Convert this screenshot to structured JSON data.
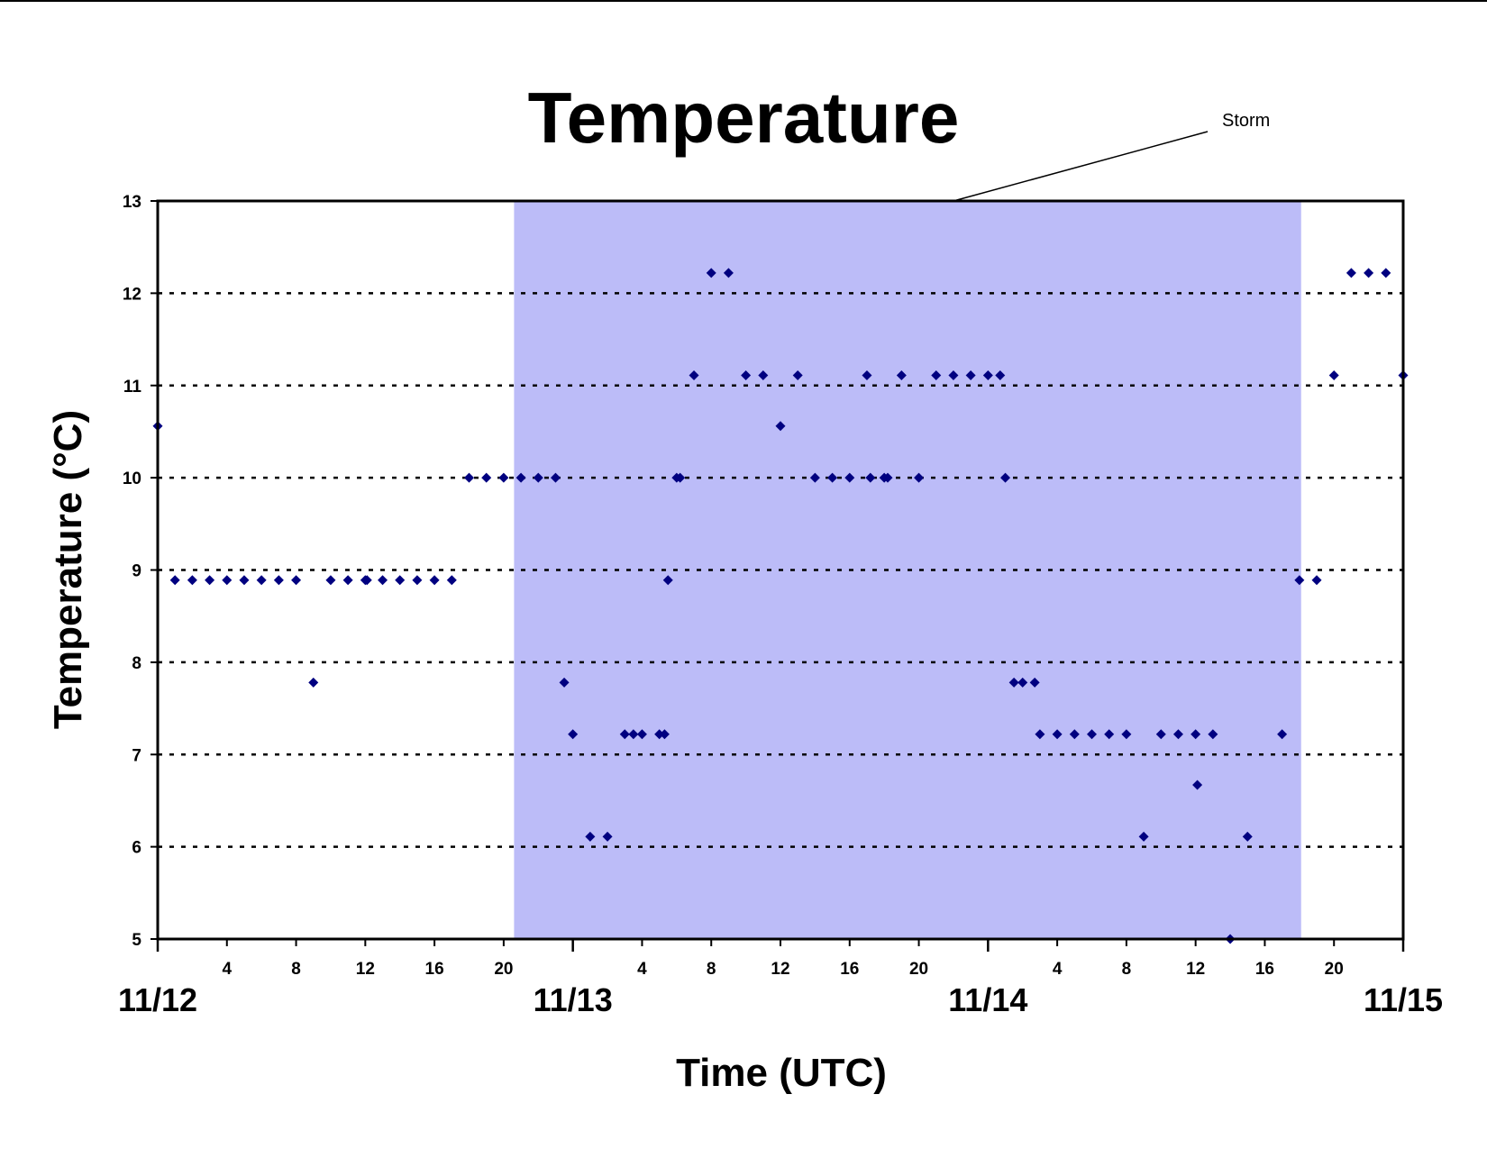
{
  "chart_data": {
    "type": "scatter",
    "title": "Temperature",
    "xlabel": "Time (UTC)",
    "ylabel": "Temperature (°C)",
    "ylim": [
      5,
      13
    ],
    "yticks": [
      5,
      6,
      7,
      8,
      9,
      10,
      11,
      12,
      13
    ],
    "xlim": [
      "11/12 00:00",
      "11/15 00:00"
    ],
    "day_labels": [
      "11/12",
      "11/13",
      "11/14",
      "11/15"
    ],
    "hour_tick_labels": [
      "4",
      "8",
      "12",
      "16",
      "20"
    ],
    "grid": "horizontal dotted",
    "legend": "none",
    "marker": "diamond",
    "marker_color": "#000080",
    "shaded_region": {
      "label": "Storm",
      "start": "11/12 20:36",
      "end": "11/14 18:06",
      "color": "#bcbcf8"
    },
    "series": [
      {
        "points": [
          [
            "11/12 00:00",
            10.56
          ],
          [
            "11/12 01:00",
            8.89
          ],
          [
            "11/12 02:00",
            8.89
          ],
          [
            "11/12 03:00",
            8.89
          ],
          [
            "11/12 04:00",
            8.89
          ],
          [
            "11/12 05:00",
            8.89
          ],
          [
            "11/12 06:00",
            8.89
          ],
          [
            "11/12 07:00",
            8.89
          ],
          [
            "11/12 08:00",
            8.89
          ],
          [
            "11/12 09:00",
            7.78
          ],
          [
            "11/12 10:00",
            8.89
          ],
          [
            "11/12 11:00",
            8.89
          ],
          [
            "11/12 12:00",
            8.89
          ],
          [
            "11/12 12:06",
            8.89
          ],
          [
            "11/12 13:00",
            8.89
          ],
          [
            "11/12 14:00",
            8.89
          ],
          [
            "11/12 15:00",
            8.89
          ],
          [
            "11/12 16:00",
            8.89
          ],
          [
            "11/12 17:00",
            8.89
          ],
          [
            "11/12 18:00",
            10.0
          ],
          [
            "11/12 19:00",
            10.0
          ],
          [
            "11/12 20:00",
            10.0
          ],
          [
            "11/12 21:00",
            10.0
          ],
          [
            "11/12 22:00",
            10.0
          ],
          [
            "11/12 23:00",
            10.0
          ],
          [
            "11/12 23:30",
            7.78
          ],
          [
            "11/13 00:00",
            7.22
          ],
          [
            "11/13 01:00",
            6.11
          ],
          [
            "11/13 02:00",
            6.11
          ],
          [
            "11/13 03:00",
            7.22
          ],
          [
            "11/13 03:30",
            7.22
          ],
          [
            "11/13 04:00",
            7.22
          ],
          [
            "11/13 05:00",
            7.22
          ],
          [
            "11/13 05:18",
            7.22
          ],
          [
            "11/13 05:30",
            8.89
          ],
          [
            "11/13 06:00",
            10.0
          ],
          [
            "11/13 06:12",
            10.0
          ],
          [
            "11/13 07:00",
            11.11
          ],
          [
            "11/13 08:00",
            12.22
          ],
          [
            "11/13 09:00",
            12.22
          ],
          [
            "11/13 10:00",
            11.11
          ],
          [
            "11/13 11:00",
            11.11
          ],
          [
            "11/13 12:00",
            10.56
          ],
          [
            "11/13 13:00",
            11.11
          ],
          [
            "11/13 14:00",
            10.0
          ],
          [
            "11/13 15:00",
            10.0
          ],
          [
            "11/13 16:00",
            10.0
          ],
          [
            "11/13 17:00",
            11.11
          ],
          [
            "11/13 17:12",
            10.0
          ],
          [
            "11/13 18:00",
            10.0
          ],
          [
            "11/13 18:12",
            10.0
          ],
          [
            "11/13 19:00",
            11.11
          ],
          [
            "11/13 20:00",
            10.0
          ],
          [
            "11/13 21:00",
            11.11
          ],
          [
            "11/13 22:00",
            11.11
          ],
          [
            "11/13 23:00",
            11.11
          ],
          [
            "11/14 00:00",
            11.11
          ],
          [
            "11/14 00:42",
            11.11
          ],
          [
            "11/14 01:00",
            10.0
          ],
          [
            "11/14 01:30",
            7.78
          ],
          [
            "11/14 02:00",
            7.78
          ],
          [
            "11/14 02:42",
            7.78
          ],
          [
            "11/14 03:00",
            7.22
          ],
          [
            "11/14 04:00",
            7.22
          ],
          [
            "11/14 05:00",
            7.22
          ],
          [
            "11/14 06:00",
            7.22
          ],
          [
            "11/14 07:00",
            7.22
          ],
          [
            "11/14 08:00",
            7.22
          ],
          [
            "11/14 09:00",
            6.11
          ],
          [
            "11/14 10:00",
            7.22
          ],
          [
            "11/14 11:00",
            7.22
          ],
          [
            "11/14 12:00",
            7.22
          ],
          [
            "11/14 12:06",
            6.67
          ],
          [
            "11/14 13:00",
            7.22
          ],
          [
            "11/14 14:00",
            5.0
          ],
          [
            "11/14 15:00",
            6.11
          ],
          [
            "11/14 17:00",
            7.22
          ],
          [
            "11/14 18:00",
            8.89
          ],
          [
            "11/14 19:00",
            8.89
          ],
          [
            "11/14 20:00",
            11.11
          ],
          [
            "11/14 21:00",
            12.22
          ],
          [
            "11/14 22:00",
            12.22
          ],
          [
            "11/14 23:00",
            12.22
          ],
          [
            "11/15 00:00",
            11.11
          ]
        ]
      }
    ]
  }
}
